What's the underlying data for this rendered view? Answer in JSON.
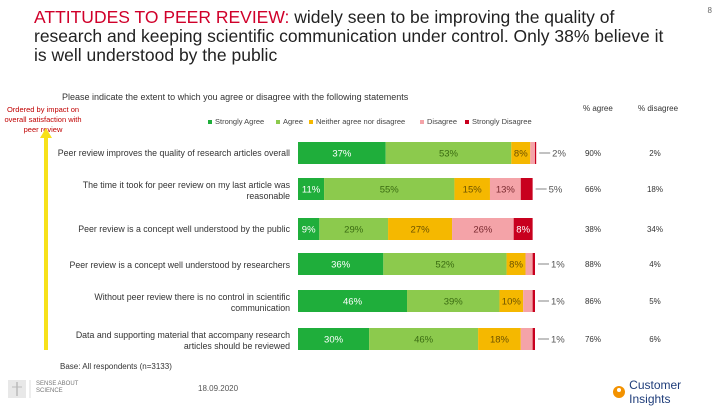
{
  "page_number": "8",
  "title": {
    "highlight": "ATTITUDES TO PEER REVIEW:",
    "rest": " widely seen to be improving the quality of research and keeping scientific communication under control. Only 38% believe it is well understood by the public"
  },
  "subtitle": "Please indicate the extent to which you agree or disagree with the following statements",
  "ordered_note": "Ordered by impact on overall satisfaction with peer review",
  "column_headers": {
    "agree": "% agree",
    "disagree": "% disagree"
  },
  "base_note": "Base: All respondents (n=3133)",
  "date": "18.09.2020",
  "brand_left": "SENSE ABOUT SCIENCE",
  "brand_right": "Customer Insights",
  "colors": {
    "strongly_agree": "#1fae3b",
    "agree": "#8cca4d",
    "neither": "#f5b800",
    "disagree": "#f4a3a8",
    "strongly_disagree": "#c8001e",
    "highlight": "#d0002a",
    "arrow": "#f7e11a"
  },
  "chart_data": {
    "type": "bar",
    "orientation": "horizontal-stacked-100",
    "title": "Please indicate the extent to which you agree or disagree with the following statements",
    "legend": [
      "Strongly Agree",
      "Agree",
      "Neither agree nor disagree",
      "Disagree",
      "Strongly Disagree"
    ],
    "legend_position": "top",
    "categories": [
      "Peer review improves the quality of research articles overall",
      "The time it took for peer review on my last article was reasonable",
      "Peer review is a concept well understood by the public",
      "Peer review is a concept well understood by researchers",
      "Without peer review there is no control in scientific communication",
      "Data and supporting material that accompany research articles should be reviewed"
    ],
    "series": [
      {
        "name": "Strongly Agree",
        "values": [
          37,
          11,
          9,
          36,
          46,
          30
        ],
        "labels": [
          "37%",
          "11%",
          "9%",
          "36%",
          "46%",
          "30%"
        ]
      },
      {
        "name": "Agree",
        "values": [
          53,
          55,
          29,
          52,
          39,
          46
        ],
        "labels": [
          "53%",
          "55%",
          "29%",
          "52%",
          "39%",
          "46%"
        ]
      },
      {
        "name": "Neither agree nor disagree",
        "values": [
          8,
          15,
          27,
          8,
          10,
          18
        ],
        "labels": [
          "8%",
          "15%",
          "27%",
          "8%",
          "10%",
          "18%"
        ]
      },
      {
        "name": "Disagree",
        "values": [
          2,
          13,
          26,
          3,
          4,
          5
        ],
        "labels": [
          "",
          "13%",
          "26%",
          "",
          "",
          ""
        ]
      },
      {
        "name": "Strongly Disagree",
        "values": [
          0.5,
          5,
          8,
          1,
          1,
          1
        ],
        "labels": [
          "",
          "",
          "8%",
          "",
          "",
          ""
        ]
      }
    ],
    "outside_labels": [
      "2%",
      "5%",
      "",
      "1%",
      "1%",
      "1%"
    ],
    "pct_agree": [
      "90%",
      "66%",
      "38%",
      "88%",
      "86%",
      "76%"
    ],
    "pct_disagree": [
      "2%",
      "18%",
      "34%",
      "4%",
      "5%",
      "6%"
    ],
    "xlim": [
      0,
      100
    ]
  }
}
